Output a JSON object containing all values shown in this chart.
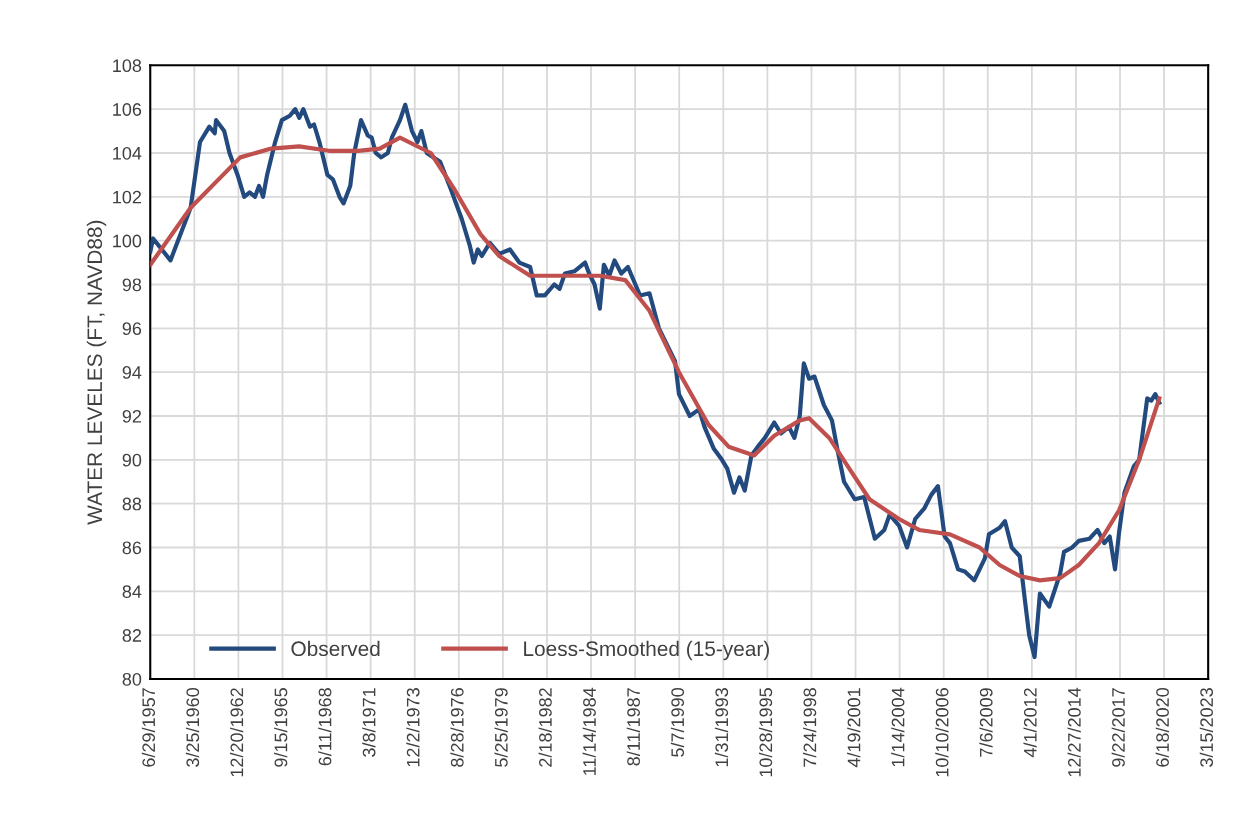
{
  "chart_data": {
    "type": "line",
    "ylabel": "WATER LEVELES (FT, NAVD88)",
    "xlim": [
      "1957-06-29",
      "2023-03-15"
    ],
    "xticks": [
      {
        "value": "1957-06-29",
        "label": "6/29/1957"
      },
      {
        "value": "1960-03-25",
        "label": "3/25/1960"
      },
      {
        "value": "1962-12-20",
        "label": "12/20/1962"
      },
      {
        "value": "1965-09-15",
        "label": "9/15/1965"
      },
      {
        "value": "1968-06-11",
        "label": "6/11/1968"
      },
      {
        "value": "1971-03-08",
        "label": "3/8/1971"
      },
      {
        "value": "1973-12-02",
        "label": "12/2/1973"
      },
      {
        "value": "1976-08-28",
        "label": "8/28/1976"
      },
      {
        "value": "1979-05-25",
        "label": "5/25/1979"
      },
      {
        "value": "1982-02-18",
        "label": "2/18/1982"
      },
      {
        "value": "1984-11-14",
        "label": "11/14/1984"
      },
      {
        "value": "1987-08-11",
        "label": "8/11/1987"
      },
      {
        "value": "1990-05-07",
        "label": "5/7/1990"
      },
      {
        "value": "1993-01-31",
        "label": "1/31/1993"
      },
      {
        "value": "1995-10-28",
        "label": "10/28/1995"
      },
      {
        "value": "1998-07-24",
        "label": "7/24/1998"
      },
      {
        "value": "2001-04-19",
        "label": "4/19/2001"
      },
      {
        "value": "2004-01-14",
        "label": "1/14/2004"
      },
      {
        "value": "2006-10-10",
        "label": "10/10/2006"
      },
      {
        "value": "2009-07-06",
        "label": "7/6/2009"
      },
      {
        "value": "2012-04-01",
        "label": "4/1/2012"
      },
      {
        "value": "2014-12-27",
        "label": "12/27/2014"
      },
      {
        "value": "2017-09-22",
        "label": "9/22/2017"
      },
      {
        "value": "2020-06-18",
        "label": "6/18/2020"
      },
      {
        "value": "2023-03-15",
        "label": "3/15/2023"
      }
    ],
    "ylim": [
      80,
      108
    ],
    "yticks": [
      80,
      82,
      84,
      86,
      88,
      90,
      92,
      94,
      96,
      98,
      100,
      102,
      104,
      106,
      108
    ],
    "grid": true,
    "legend": "bottom left",
    "marker": "none",
    "line_style": "solid",
    "series": [
      {
        "name": "Observed",
        "color": "#234a7e",
        "x": [
          "1957-07",
          "1957-09",
          "1958-10",
          "1960-01",
          "1960-08",
          "1961-03",
          "1961-07",
          "1961-08",
          "1962-02",
          "1962-06",
          "1962-12",
          "1963-05",
          "1963-09",
          "1964-01",
          "1964-04",
          "1964-07",
          "1964-10",
          "1965-04",
          "1965-09",
          "1966-03",
          "1966-07",
          "1966-10",
          "1967-01",
          "1967-06",
          "1967-09",
          "1968-01",
          "1968-07",
          "1968-11",
          "1969-04",
          "1969-07",
          "1969-12",
          "1970-03",
          "1970-08",
          "1971-01",
          "1971-04",
          "1971-07",
          "1971-11",
          "1972-04",
          "1972-07",
          "1973-01",
          "1973-05",
          "1973-10",
          "1974-02",
          "1974-05",
          "1974-09",
          "1975-07",
          "1976-02",
          "1976-11",
          "1977-05",
          "1977-08",
          "1977-11",
          "1978-02",
          "1978-08",
          "1979-03",
          "1979-11",
          "1980-06",
          "1981-02",
          "1981-07",
          "1982-01",
          "1982-08",
          "1982-12",
          "1983-04",
          "1983-11",
          "1984-07",
          "1984-10",
          "1985-02",
          "1985-06",
          "1985-09",
          "1986-01",
          "1986-05",
          "1986-10",
          "1987-03",
          "1987-12",
          "1988-07",
          "1989-02",
          "1990-02",
          "1990-05",
          "1991-01",
          "1991-08",
          "1991-12",
          "1992-07",
          "1993-01",
          "1993-05",
          "1993-10",
          "1994-02",
          "1994-06",
          "1994-11",
          "1995-05",
          "1995-09",
          "1996-04",
          "1996-09",
          "1997-03",
          "1997-07",
          "1997-11",
          "1998-02",
          "1998-06",
          "1998-10",
          "1999-05",
          "1999-11",
          "2000-03",
          "2000-08",
          "2001-04",
          "2001-11",
          "2002-07",
          "2003-02",
          "2003-06",
          "2004-01",
          "2004-07",
          "2005-01",
          "2005-08",
          "2006-01",
          "2006-06",
          "2006-11",
          "2007-03",
          "2007-09",
          "2008-02",
          "2008-09",
          "2009-05",
          "2009-08",
          "2010-04",
          "2010-08",
          "2011-01",
          "2011-07",
          "2011-11",
          "2012-02",
          "2012-06",
          "2012-10",
          "2013-05",
          "2014-01",
          "2014-04",
          "2014-10",
          "2015-03",
          "2015-11",
          "2016-05",
          "2016-10",
          "2017-02",
          "2017-06",
          "2017-09",
          "2018-01",
          "2018-08",
          "2018-12",
          "2019-06",
          "2019-09",
          "2019-12",
          "2020-03"
        ],
        "values": [
          99.5,
          100.1,
          99.1,
          101.5,
          104.5,
          105.2,
          104.9,
          105.5,
          105,
          104,
          103,
          102,
          102.2,
          102,
          102.5,
          102,
          103,
          104.5,
          105.5,
          105.7,
          106,
          105.6,
          106,
          105.2,
          105.3,
          104.5,
          103,
          102.8,
          102,
          101.7,
          102.5,
          104,
          105.5,
          104.8,
          104.7,
          104,
          103.8,
          104,
          104.7,
          105.5,
          106.2,
          105,
          104.5,
          105,
          104,
          103.6,
          102.5,
          101,
          99.8,
          99,
          99.6,
          99.3,
          99.9,
          99.4,
          99.6,
          99.0,
          98.8,
          97.5,
          97.5,
          98,
          97.8,
          98.5,
          98.6,
          99.0,
          98.5,
          98,
          96.9,
          98.9,
          98.4,
          99.1,
          98.5,
          98.8,
          97.5,
          97.6,
          96,
          94.5,
          93,
          92,
          92.3,
          91.5,
          90.5,
          90,
          89.6,
          88.5,
          89.2,
          88.6,
          90.2,
          90.7,
          91,
          91.7,
          91.2,
          91.5,
          91,
          92,
          94.4,
          93.7,
          93.8,
          92.5,
          91.8,
          90.5,
          89,
          88.2,
          88.3,
          86.4,
          86.8,
          87.5,
          87,
          86,
          87.3,
          87.8,
          88.4,
          88.8,
          86.5,
          86.2,
          85,
          84.9,
          84.5,
          85.5,
          86.6,
          86.9,
          87.2,
          86,
          85.6,
          83.5,
          82,
          81,
          83.9,
          83.3,
          84.8,
          85.8,
          86,
          86.3,
          86.4,
          86.8,
          86.2,
          86.5,
          85,
          86.7,
          88.5,
          89.7,
          90,
          92.8,
          92.7,
          93,
          92.6
        ]
      },
      {
        "name": "Loess-Smoothed (15-year)",
        "color": "#c0504d",
        "x": [
          "1957-07",
          "1960-01",
          "1963-02",
          "1965-01",
          "1966-10",
          "1968-08",
          "1970-06",
          "1971-10",
          "1973-01",
          "1974-12",
          "1976-06",
          "1978-01",
          "1979-03",
          "1981-02",
          "1982-12",
          "1985-06",
          "1987-01",
          "1988-07",
          "1990-05",
          "1992-03",
          "1993-06",
          "1995-01",
          "1996-04",
          "1997-11",
          "1998-06",
          "1999-09",
          "2001-01",
          "2002-03",
          "2004-01",
          "2005-04",
          "2007-03",
          "2009-01",
          "2010-04",
          "2011-07",
          "2012-10",
          "2014-01",
          "2015-03",
          "2016-06",
          "2017-09",
          "2018-12",
          "2020-03"
        ],
        "values": [
          98.9,
          101.5,
          103.8,
          104.2,
          104.3,
          104.1,
          104.1,
          104.2,
          104.7,
          104,
          102.3,
          100.3,
          99.3,
          98.4,
          98.4,
          98.4,
          98.2,
          96.8,
          94,
          91.6,
          90.6,
          90.2,
          91.1,
          91.8,
          91.9,
          91,
          89.5,
          88.2,
          87.3,
          86.8,
          86.6,
          86,
          85.2,
          84.7,
          84.5,
          84.6,
          85.2,
          86.2,
          87.7,
          90,
          92.8
        ]
      }
    ]
  }
}
